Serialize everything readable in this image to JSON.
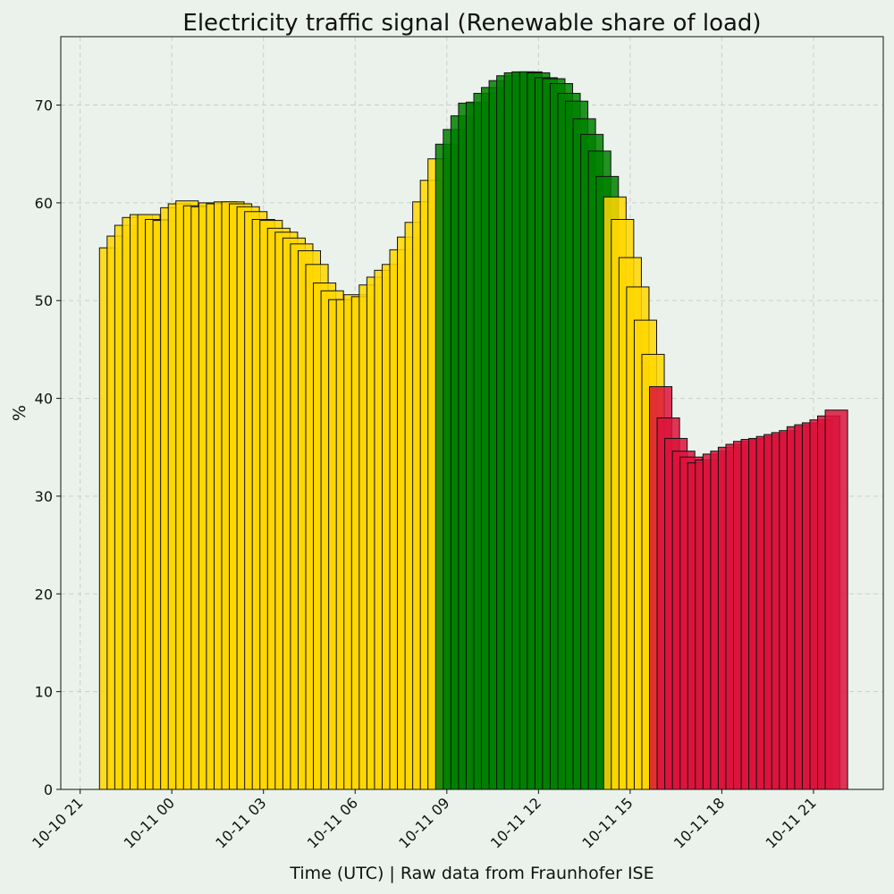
{
  "chart_data": {
    "type": "bar",
    "title": "Electricity traffic signal (Renewable share of load)",
    "xlabel": "Time (UTC) | Raw data from Fraunhofer ISE",
    "ylabel": "%",
    "x": [
      "10-10 22:00",
      "10-10 22:15",
      "10-10 22:30",
      "10-10 22:45",
      "10-10 23:00",
      "10-10 23:15",
      "10-10 23:30",
      "10-10 23:45",
      "10-11 00:00",
      "10-11 00:15",
      "10-11 00:30",
      "10-11 00:45",
      "10-11 01:00",
      "10-11 01:15",
      "10-11 01:30",
      "10-11 01:45",
      "10-11 02:00",
      "10-11 02:15",
      "10-11 02:30",
      "10-11 02:45",
      "10-11 03:00",
      "10-11 03:15",
      "10-11 03:30",
      "10-11 03:45",
      "10-11 04:00",
      "10-11 04:15",
      "10-11 04:30",
      "10-11 04:45",
      "10-11 05:00",
      "10-11 05:15",
      "10-11 05:30",
      "10-11 05:45",
      "10-11 06:00",
      "10-11 06:15",
      "10-11 06:30",
      "10-11 06:45",
      "10-11 07:00",
      "10-11 07:15",
      "10-11 07:30",
      "10-11 07:45",
      "10-11 08:00",
      "10-11 08:15",
      "10-11 08:30",
      "10-11 08:45",
      "10-11 09:00",
      "10-11 09:15",
      "10-11 09:30",
      "10-11 09:45",
      "10-11 10:00",
      "10-11 10:15",
      "10-11 10:30",
      "10-11 10:45",
      "10-11 11:00",
      "10-11 11:15",
      "10-11 11:30",
      "10-11 11:45",
      "10-11 12:00",
      "10-11 12:15",
      "10-11 12:30",
      "10-11 12:45",
      "10-11 13:00",
      "10-11 13:15",
      "10-11 13:30",
      "10-11 13:45",
      "10-11 14:00",
      "10-11 14:15",
      "10-11 14:30",
      "10-11 14:45",
      "10-11 15:00",
      "10-11 15:15",
      "10-11 15:30",
      "10-11 15:45",
      "10-11 16:00",
      "10-11 16:15",
      "10-11 16:30",
      "10-11 16:45",
      "10-11 17:00",
      "10-11 17:15",
      "10-11 17:30",
      "10-11 17:45",
      "10-11 18:00",
      "10-11 18:15",
      "10-11 18:30",
      "10-11 18:45",
      "10-11 19:00",
      "10-11 19:15",
      "10-11 19:30",
      "10-11 19:45",
      "10-11 20:00",
      "10-11 20:15",
      "10-11 20:30",
      "10-11 20:45",
      "10-11 21:00",
      "10-11 21:15",
      "10-11 21:30",
      "10-11 21:45"
    ],
    "values": [
      55.4,
      56.6,
      57.7,
      58.5,
      58.8,
      58.8,
      58.3,
      58.2,
      59.5,
      59.9,
      60.2,
      59.7,
      59.6,
      60.0,
      59.9,
      60.1,
      60.1,
      59.9,
      59.6,
      59.1,
      58.3,
      58.2,
      57.4,
      57.0,
      56.4,
      55.8,
      55.1,
      53.7,
      51.8,
      51.0,
      50.1,
      50.1,
      50.6,
      50.4,
      51.6,
      52.4,
      53.1,
      53.7,
      55.2,
      56.5,
      58.0,
      60.1,
      62.3,
      64.5,
      66.0,
      67.5,
      68.9,
      70.2,
      70.3,
      71.2,
      71.8,
      72.5,
      73.0,
      73.3,
      73.4,
      73.4,
      73.3,
      72.8,
      72.7,
      72.2,
      71.2,
      70.4,
      68.6,
      67.0,
      65.3,
      62.7,
      60.6,
      58.3,
      54.4,
      51.4,
      48.0,
      44.5,
      41.2,
      38.0,
      35.9,
      34.6,
      34.0,
      33.4,
      33.7,
      34.3,
      34.6,
      35.0,
      35.3,
      35.6,
      35.8,
      35.9,
      36.1,
      36.3,
      36.5,
      36.7,
      37.1,
      37.3,
      37.5,
      37.8,
      38.2,
      38.8
    ],
    "colors": [
      "#ffd700",
      "#ffd700",
      "#ffd700",
      "#ffd700",
      "#ffd700",
      "#ffd700",
      "#ffd700",
      "#ffd700",
      "#ffd700",
      "#ffd700",
      "#ffd700",
      "#ffd700",
      "#ffd700",
      "#ffd700",
      "#ffd700",
      "#ffd700",
      "#ffd700",
      "#ffd700",
      "#ffd700",
      "#ffd700",
      "#ffd700",
      "#ffd700",
      "#ffd700",
      "#ffd700",
      "#ffd700",
      "#ffd700",
      "#ffd700",
      "#ffd700",
      "#ffd700",
      "#ffd700",
      "#ffd700",
      "#ffd700",
      "#ffd700",
      "#ffd700",
      "#ffd700",
      "#ffd700",
      "#ffd700",
      "#ffd700",
      "#ffd700",
      "#ffd700",
      "#ffd700",
      "#ffd700",
      "#ffd700",
      "#ffd700",
      "#008000",
      "#008000",
      "#008000",
      "#008000",
      "#008000",
      "#008000",
      "#008000",
      "#008000",
      "#008000",
      "#008000",
      "#008000",
      "#008000",
      "#008000",
      "#008000",
      "#008000",
      "#008000",
      "#008000",
      "#008000",
      "#008000",
      "#008000",
      "#008000",
      "#008000",
      "#ffd700",
      "#ffd700",
      "#ffd700",
      "#ffd700",
      "#ffd700",
      "#ffd700",
      "#dc143c",
      "#dc143c",
      "#dc143c",
      "#dc143c",
      "#dc143c",
      "#dc143c",
      "#dc143c",
      "#dc143c",
      "#dc143c",
      "#dc143c",
      "#dc143c",
      "#dc143c",
      "#dc143c",
      "#dc143c",
      "#dc143c",
      "#dc143c",
      "#dc143c",
      "#dc143c",
      "#dc143c",
      "#dc143c",
      "#dc143c",
      "#dc143c",
      "#dc143c",
      "#dc143c"
    ],
    "xlim": [
      "10-10 20:22",
      "10-11 23:17"
    ],
    "xticks": [
      {
        "value": "10-10 21:00",
        "label": "10-10 21"
      },
      {
        "value": "10-11 00:00",
        "label": "10-11 00"
      },
      {
        "value": "10-11 03:00",
        "label": "10-11 03"
      },
      {
        "value": "10-11 06:00",
        "label": "10-11 06"
      },
      {
        "value": "10-11 09:00",
        "label": "10-11 09"
      },
      {
        "value": "10-11 12:00",
        "label": "10-11 12"
      },
      {
        "value": "10-11 15:00",
        "label": "10-11 15"
      },
      {
        "value": "10-11 18:00",
        "label": "10-11 18"
      },
      {
        "value": "10-11 21:00",
        "label": "10-11 21"
      }
    ],
    "ylim": [
      0,
      77
    ],
    "yticks": [
      0,
      10,
      20,
      30,
      40,
      50,
      60,
      70
    ],
    "grid": true
  }
}
